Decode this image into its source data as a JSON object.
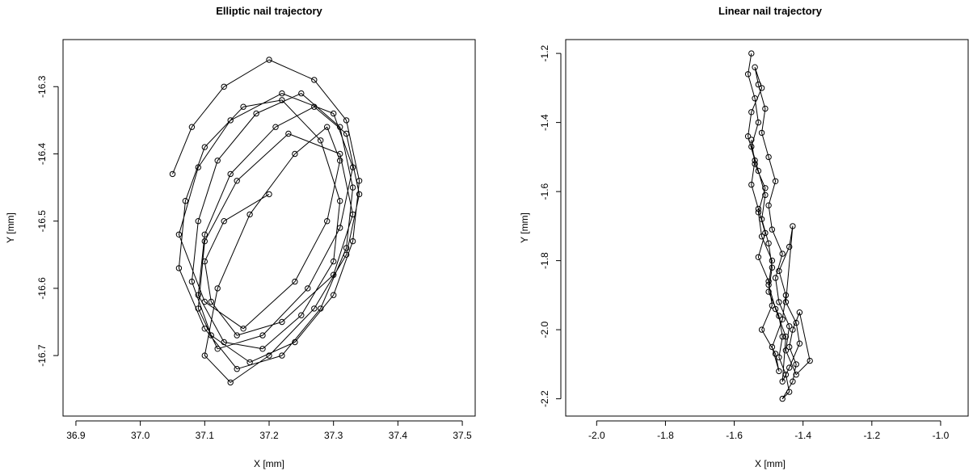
{
  "chart_data": [
    {
      "type": "scatter",
      "connected": true,
      "marker": "open-circle",
      "title": "Elliptic nail trajectory",
      "xlabel": "X [mm]",
      "ylabel": "Y [mm]",
      "xlim": [
        36.88,
        37.52
      ],
      "ylim": [
        -16.79,
        -16.23
      ],
      "xticks": [
        "36.9",
        "37.0",
        "37.1",
        "37.2",
        "37.3",
        "37.4",
        "37.5"
      ],
      "xtick_values": [
        36.9,
        37.0,
        37.1,
        37.2,
        37.3,
        37.4,
        37.5
      ],
      "yticks": [
        "-16.3",
        "-16.4",
        "-16.5",
        "-16.6",
        "-16.7"
      ],
      "ytick_values": [
        -16.3,
        -16.4,
        -16.5,
        -16.6,
        -16.7
      ],
      "series": [
        {
          "x": [
            37.05,
            37.08,
            37.13,
            37.2,
            37.27,
            37.32,
            37.34,
            37.33,
            37.3,
            37.24,
            37.17,
            37.11,
            37.08,
            37.09,
            37.12,
            37.18,
            37.25,
            37.31,
            37.33,
            37.32,
            37.28,
            37.22,
            37.15,
            37.1,
            37.06,
            37.07,
            37.1,
            37.16,
            37.22,
            37.28,
            37.31,
            37.3,
            37.25,
            37.19,
            37.13,
            37.09,
            37.1,
            37.14,
            37.21,
            37.27,
            37.32,
            37.34,
            37.32,
            37.27,
            37.2,
            37.14,
            37.1,
            37.12,
            37.17,
            37.24,
            37.29,
            37.31,
            37.29,
            37.24,
            37.16,
            37.1,
            37.06,
            37.09,
            37.14,
            37.22,
            37.3,
            37.33,
            37.31,
            37.26,
            37.19,
            37.12,
            37.09,
            37.1,
            37.15,
            37.23,
            37.31,
            37.33,
            37.3,
            37.22,
            37.15,
            37.11,
            37.1,
            37.13,
            37.2
          ],
          "y": [
            -16.43,
            -16.36,
            -16.3,
            -16.26,
            -16.29,
            -16.35,
            -16.44,
            -16.53,
            -16.61,
            -16.68,
            -16.71,
            -16.67,
            -16.59,
            -16.5,
            -16.41,
            -16.34,
            -16.31,
            -16.36,
            -16.45,
            -16.54,
            -16.63,
            -16.7,
            -16.72,
            -16.66,
            -16.57,
            -16.47,
            -16.39,
            -16.33,
            -16.32,
            -16.38,
            -16.47,
            -16.56,
            -16.64,
            -16.69,
            -16.68,
            -16.61,
            -16.52,
            -16.43,
            -16.36,
            -16.33,
            -16.37,
            -16.46,
            -16.55,
            -16.63,
            -16.7,
            -16.74,
            -16.7,
            -16.6,
            -16.49,
            -16.4,
            -16.36,
            -16.41,
            -16.5,
            -16.59,
            -16.66,
            -16.62,
            -16.52,
            -16.42,
            -16.35,
            -16.31,
            -16.34,
            -16.42,
            -16.51,
            -16.6,
            -16.67,
            -16.69,
            -16.63,
            -16.53,
            -16.44,
            -16.37,
            -16.4,
            -16.49,
            -16.58,
            -16.65,
            -16.67,
            -16.62,
            -16.56,
            -16.5,
            -16.46
          ]
        }
      ]
    },
    {
      "type": "scatter",
      "connected": true,
      "marker": "open-circle",
      "title": "Linear nail trajectory",
      "xlabel": "X [mm]",
      "ylabel": "Y [mm]",
      "xlim": [
        -2.09,
        -0.92
      ],
      "ylim": [
        -2.25,
        -1.16
      ],
      "xticks": [
        "-2.0",
        "-1.8",
        "-1.6",
        "-1.4",
        "-1.2",
        "-1.0"
      ],
      "xtick_values": [
        -2.0,
        -1.8,
        -1.6,
        -1.4,
        -1.2,
        -1.0
      ],
      "yticks": [
        "-1.2",
        "-1.4",
        "-1.6",
        "-1.8",
        "-2.0",
        "-2.2"
      ],
      "ytick_values": [
        -1.2,
        -1.4,
        -1.6,
        -1.8,
        -2.0,
        -2.2
      ],
      "series": [
        {
          "x": [
            -1.55,
            -1.56,
            -1.54,
            -1.53,
            -1.55,
            -1.53,
            -1.51,
            -1.52,
            -1.5,
            -1.49,
            -1.5,
            -1.47,
            -1.46,
            -1.47,
            -1.45,
            -1.44,
            -1.46,
            -1.43,
            -1.42,
            -1.44,
            -1.43,
            -1.41,
            -1.38,
            -1.42,
            -1.45,
            -1.44,
            -1.47,
            -1.48,
            -1.46,
            -1.49,
            -1.5,
            -1.48,
            -1.5,
            -1.52,
            -1.51,
            -1.53,
            -1.54,
            -1.52,
            -1.55,
            -1.56,
            -1.54,
            -1.55,
            -1.53,
            -1.51,
            -1.53,
            -1.5,
            -1.49,
            -1.52,
            -1.48,
            -1.47,
            -1.49,
            -1.46,
            -1.45,
            -1.47,
            -1.44,
            -1.43,
            -1.45,
            -1.42,
            -1.41,
            -1.44,
            -1.46,
            -1.45,
            -1.48,
            -1.5,
            -1.49,
            -1.52,
            -1.53,
            -1.51,
            -1.54,
            -1.55
          ],
          "y": [
            -1.2,
            -1.26,
            -1.33,
            -1.4,
            -1.47,
            -1.54,
            -1.61,
            -1.68,
            -1.75,
            -1.82,
            -1.89,
            -1.96,
            -2.02,
            -2.08,
            -2.13,
            -2.18,
            -2.2,
            -2.15,
            -2.1,
            -2.05,
            -2.0,
            -1.95,
            -2.09,
            -2.13,
            -2.06,
            -1.99,
            -1.92,
            -1.85,
            -1.78,
            -1.71,
            -1.64,
            -1.57,
            -1.5,
            -1.43,
            -1.36,
            -1.29,
            -1.24,
            -1.3,
            -1.37,
            -1.44,
            -1.51,
            -1.58,
            -1.65,
            -1.72,
            -1.79,
            -1.86,
            -1.93,
            -2.0,
            -2.07,
            -2.12,
            -2.05,
            -1.97,
            -1.9,
            -1.83,
            -1.76,
            -1.7,
            -1.92,
            -1.98,
            -2.04,
            -2.11,
            -2.15,
            -2.02,
            -1.94,
            -1.87,
            -1.8,
            -1.73,
            -1.66,
            -1.59,
            -1.52,
            -1.45
          ]
        }
      ]
    }
  ]
}
